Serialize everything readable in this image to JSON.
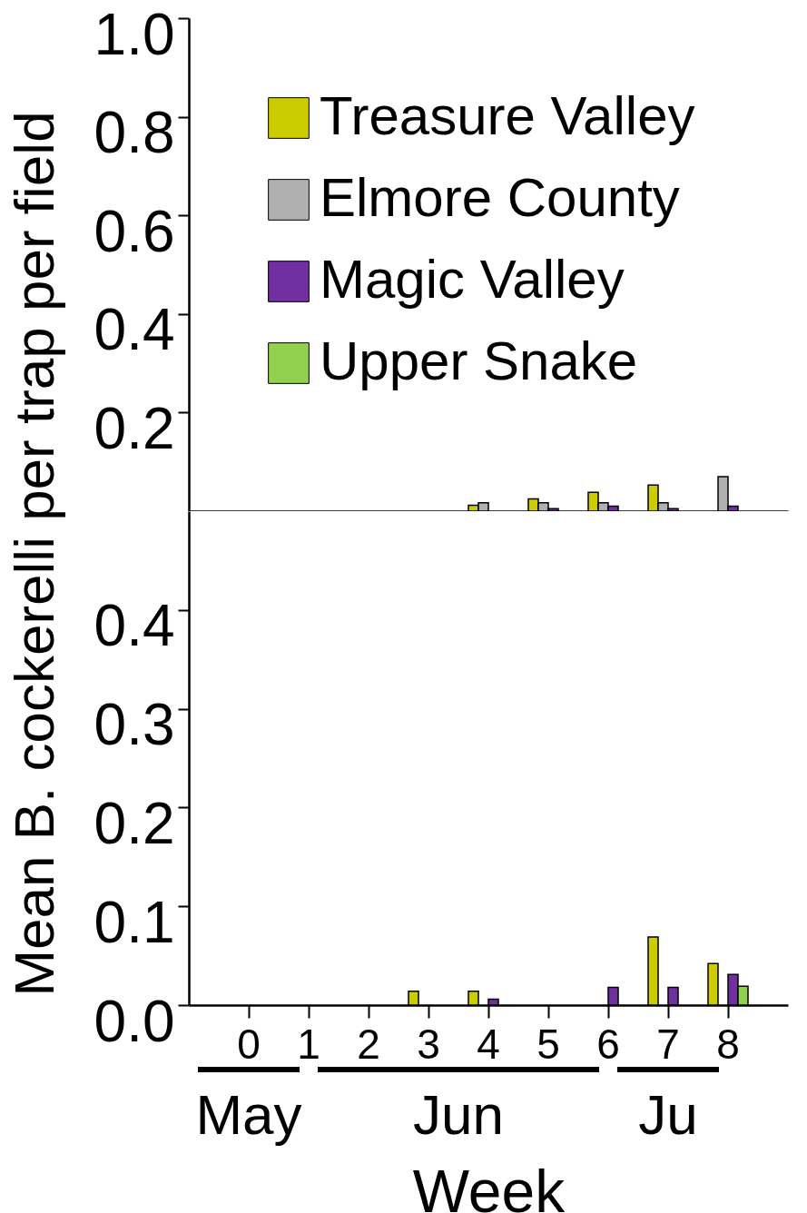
{
  "chart_data": [
    {
      "type": "bar",
      "ylabel": "Mean B. cockerelli per trap per field",
      "categories": [
        "0",
        "1",
        "2",
        "3",
        "4",
        "5",
        "6",
        "7",
        "8"
      ],
      "series": [
        {
          "name": "Treasure Valley",
          "color": "#cccc00",
          "values": [
            null,
            null,
            null,
            null,
            0.012,
            0.025,
            0.038,
            0.053,
            null
          ]
        },
        {
          "name": "Elmore County",
          "color": "#b0b0b0",
          "values": [
            null,
            null,
            null,
            null,
            0.017,
            0.017,
            0.017,
            0.017,
            0.07
          ]
        },
        {
          "name": "Magic Valley",
          "color": "#7030a0",
          "values": [
            null,
            null,
            null,
            null,
            null,
            0.005,
            0.01,
            0.005,
            0.01
          ]
        },
        {
          "name": "Upper Snake",
          "color": "#92d050",
          "values": [
            null,
            null,
            null,
            null,
            null,
            null,
            null,
            null,
            null
          ]
        }
      ],
      "ylim": [
        0,
        1
      ],
      "yticks": [
        0.2,
        0.4,
        0.6,
        0.8,
        {
          "value": 1,
          "label": "1.0"
        }
      ],
      "tick_labels": "y",
      "legend": "top left",
      "grid": false
    },
    {
      "type": "bar",
      "xlabel": "Week",
      "annotations": [
        "May",
        "Jun",
        "Ju"
      ],
      "categories": [
        "0",
        "1",
        "2",
        "3",
        "4",
        "5",
        "6",
        "7",
        "8"
      ],
      "series": [
        {
          "color": "#cccc00",
          "values": [
            null,
            null,
            null,
            0.014,
            0.014,
            null,
            null,
            0.069,
            0.042
          ]
        },
        {
          "color": "#b0b0b0",
          "values": [
            null,
            null,
            null,
            null,
            null,
            null,
            null,
            null,
            null
          ]
        },
        {
          "color": "#7030a0",
          "values": [
            null,
            null,
            null,
            null,
            0.006,
            null,
            0.018,
            0.018,
            0.031
          ]
        },
        {
          "color": "#92d050",
          "values": [
            null,
            null,
            null,
            null,
            null,
            null,
            null,
            null,
            0.019
          ]
        }
      ],
      "ylim": [
        0,
        0.5
      ],
      "yticks": [
        {
          "value": 0,
          "label": "0.0"
        },
        0.1,
        0.2,
        0.3,
        0.4
      ],
      "legend": false,
      "grid": false
    }
  ]
}
